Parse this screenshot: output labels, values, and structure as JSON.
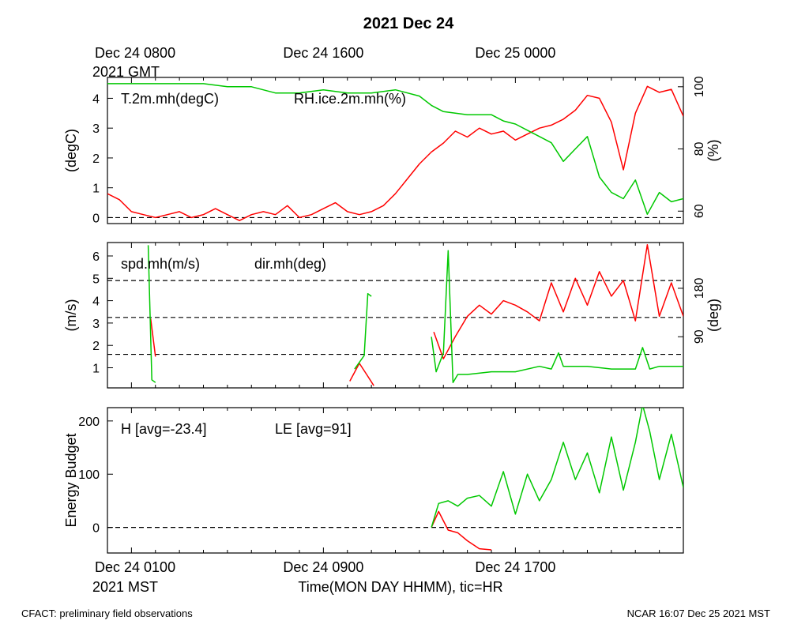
{
  "title": "2021 Dec 24",
  "footer_left": "CFACT: preliminary field observations",
  "footer_right": "NCAR 16:07 Dec 25 2021 MST",
  "colors": {
    "red": "#ff0000",
    "green": "#00c800",
    "axis": "#000000"
  },
  "top_time_labels": [
    {
      "text": "Dec 24 0800",
      "hour": 0
    },
    {
      "text": "Dec 24 1600",
      "hour": 8
    },
    {
      "text": "Dec 25 0000",
      "hour": 16
    }
  ],
  "top_time_sub": "2021 GMT",
  "bottom_time_labels": [
    {
      "text": "Dec 24 0100",
      "hour": 0
    },
    {
      "text": "Dec 24 0900",
      "hour": 8
    },
    {
      "text": "Dec 24 1700",
      "hour": 16
    }
  ],
  "bottom_time_sub": "2021 MST",
  "xlabel": "Time(MON DAY HHMM), tic=HR",
  "chart_data": [
    {
      "type": "line",
      "panel": "temperature-humidity",
      "xlim": [
        -1,
        23
      ],
      "ylabel_left": "(degC)",
      "ylabel_right": "(%)",
      "ylim_left": [
        -0.2,
        4.7
      ],
      "ylim_right": [
        56,
        103
      ],
      "yticks_left": [
        0,
        1,
        2,
        3,
        4
      ],
      "yticks_right": [
        60,
        80,
        100
      ],
      "hlines_left": [
        0
      ],
      "series": [
        {
          "name": "T.2m.mh(degC)",
          "axis": "left",
          "color": "#ff0000",
          "x": [
            -1,
            -0.5,
            0,
            0.5,
            1,
            1.5,
            2,
            2.5,
            3,
            3.5,
            4,
            4.5,
            5,
            5.5,
            6,
            6.5,
            7,
            7.5,
            8,
            8.5,
            9,
            9.5,
            10,
            10.5,
            11,
            11.5,
            12,
            12.5,
            13,
            13.5,
            14,
            14.5,
            15,
            15.5,
            16,
            16.5,
            17,
            17.5,
            18,
            18.5,
            19,
            19.5,
            20,
            20.5,
            21,
            21.5,
            22,
            22.5,
            23
          ],
          "y": [
            0.8,
            0.6,
            0.2,
            0.1,
            0.0,
            0.1,
            0.2,
            0.0,
            0.1,
            0.3,
            0.1,
            -0.1,
            0.1,
            0.2,
            0.1,
            0.4,
            0.0,
            0.1,
            0.3,
            0.5,
            0.2,
            0.1,
            0.2,
            0.4,
            0.8,
            1.3,
            1.8,
            2.2,
            2.5,
            2.9,
            2.7,
            3.0,
            2.8,
            2.9,
            2.6,
            2.8,
            3.0,
            3.1,
            3.3,
            3.6,
            4.1,
            4.0,
            3.2,
            1.6,
            3.5,
            4.4,
            4.2,
            4.3,
            3.4
          ]
        },
        {
          "name": "RH.ice.2m.mh(%)",
          "axis": "right",
          "color": "#00c800",
          "x": [
            -1,
            0,
            1,
            2,
            3,
            4,
            5,
            6,
            7,
            8,
            9,
            10,
            11,
            12,
            12.5,
            13,
            14,
            15,
            15.5,
            16,
            16.5,
            17,
            17.5,
            18,
            18.5,
            19,
            19.5,
            20,
            20.5,
            21,
            21.5,
            22,
            22.5,
            23
          ],
          "y": [
            101,
            101,
            101,
            101,
            101,
            100,
            100,
            98,
            98,
            99,
            98,
            98,
            99,
            97,
            94,
            92,
            91,
            91,
            89,
            88,
            86,
            84,
            82,
            76,
            80,
            84,
            71,
            66,
            64,
            70,
            59,
            66,
            63,
            64
          ]
        }
      ]
    },
    {
      "type": "line",
      "panel": "wind",
      "xlim": [
        -1,
        23
      ],
      "ylabel_left": "(m/s)",
      "ylabel_right": "(deg)",
      "ylim_left": [
        0.1,
        6.6
      ],
      "ylim_right": [
        -5,
        265
      ],
      "yticks_left": [
        1,
        2,
        3,
        4,
        5,
        6
      ],
      "yticks_right": [
        90,
        180
      ],
      "hlines_left": [
        1.6,
        3.25,
        4.9
      ],
      "series": [
        {
          "name": "spd.mh(m/s)",
          "axis": "left",
          "color": "#ff0000",
          "segments": [
            {
              "x": [
                0.8,
                1.0
              ],
              "y": [
                3.2,
                1.5
              ]
            },
            {
              "x": [
                9.1,
                9.5,
                9.8,
                10.1
              ],
              "y": [
                0.4,
                1.2,
                0.7,
                0.2
              ]
            },
            {
              "x": [
                12.6,
                13.0,
                13.5,
                14.0,
                14.5,
                15.0,
                15.5,
                16.0,
                16.5,
                17.0,
                17.5,
                18.0,
                18.5,
                19.0,
                19.5,
                20.0,
                20.5,
                21.0,
                21.5,
                22.0,
                22.5,
                23.0
              ],
              "y": [
                2.6,
                1.4,
                2.4,
                3.3,
                3.8,
                3.4,
                4.0,
                3.8,
                3.5,
                3.1,
                4.8,
                3.5,
                5.0,
                3.8,
                5.3,
                4.2,
                4.9,
                3.1,
                6.5,
                3.3,
                4.8,
                3.3
              ]
            }
          ]
        },
        {
          "name": "dir.mh(deg)",
          "axis": "right",
          "color": "#00c800",
          "segments": [
            {
              "x": [
                0.7,
                0.85,
                1.0
              ],
              "y": [
                260,
                10,
                5
              ]
            },
            {
              "x": [
                9.3,
                9.7,
                9.85,
                10.0
              ],
              "y": [
                30,
                55,
                170,
                165
              ]
            },
            {
              "x": [
                12.5,
                12.7,
                13.0,
                13.2,
                13.4,
                13.6,
                14.0,
                15.0,
                16.0,
                17.0,
                17.5,
                17.8,
                18.0,
                19.0,
                20.0,
                21.0,
                21.3,
                21.6,
                22.0,
                23.0
              ],
              "y": [
                90,
                25,
                60,
                250,
                5,
                20,
                20,
                25,
                25,
                35,
                30,
                60,
                35,
                35,
                30,
                30,
                70,
                30,
                35,
                35
              ]
            }
          ]
        }
      ]
    },
    {
      "type": "line",
      "panel": "energy-budget",
      "xlim": [
        -1,
        23
      ],
      "ylabel_left": "Energy Budget",
      "ylim_left": [
        -48,
        225
      ],
      "yticks_left": [
        0,
        100,
        200
      ],
      "hlines_left": [
        0
      ],
      "series": [
        {
          "name": "H [avg=-23.4]",
          "axis": "left",
          "color": "#ff0000",
          "x": [
            12.5,
            12.8,
            13.2,
            13.6,
            14.0,
            14.5,
            15.0
          ],
          "y": [
            0,
            30,
            -5,
            -10,
            -25,
            -40,
            -42
          ]
        },
        {
          "name": "LE [avg=91]",
          "axis": "left",
          "color": "#00c800",
          "x": [
            12.5,
            12.8,
            13.2,
            13.6,
            14.0,
            14.5,
            15.0,
            15.5,
            16.0,
            16.5,
            17.0,
            17.5,
            18.0,
            18.5,
            19.0,
            19.5,
            20.0,
            20.5,
            21.0,
            21.3,
            21.6,
            22.0,
            22.5,
            23.0
          ],
          "y": [
            0,
            45,
            50,
            40,
            55,
            60,
            40,
            105,
            25,
            100,
            50,
            90,
            160,
            90,
            140,
            65,
            170,
            70,
            160,
            230,
            180,
            90,
            175,
            75
          ]
        }
      ]
    }
  ],
  "legends": [
    {
      "items": [
        "T.2m.mh(degC)",
        "RH.ice.2m.mh(%)"
      ]
    },
    {
      "items": [
        "spd.mh(m/s)",
        "dir.mh(deg)"
      ]
    },
    {
      "items": [
        "H [avg=-23.4]",
        "LE [avg=91]"
      ]
    }
  ]
}
